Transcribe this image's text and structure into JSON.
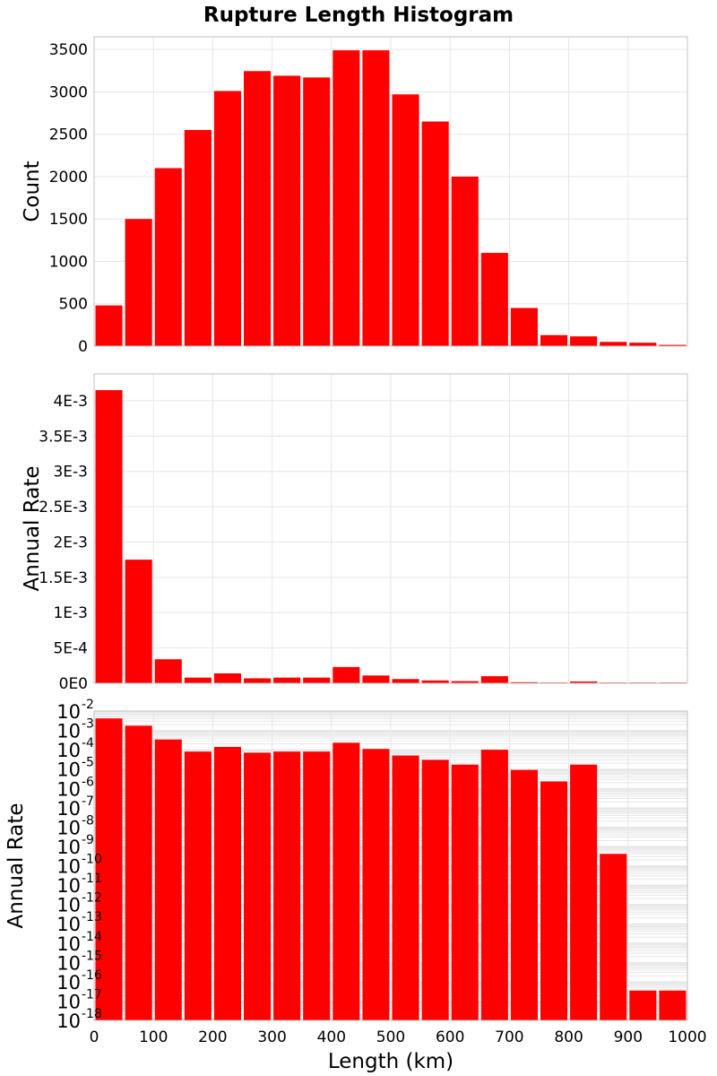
{
  "title": "Rupture Length Histogram",
  "chart_data": [
    {
      "type": "bar",
      "ylabel": "Count",
      "xlim": [
        0,
        1000
      ],
      "ylim": [
        0,
        3650
      ],
      "bin_width": 50,
      "x": [
        25,
        75,
        125,
        175,
        225,
        275,
        325,
        375,
        425,
        475,
        525,
        575,
        625,
        675,
        725,
        775,
        825,
        875,
        925,
        975
      ],
      "values": [
        480,
        1500,
        2100,
        2550,
        3010,
        3245,
        3190,
        3170,
        3490,
        3490,
        2970,
        2650,
        2000,
        1100,
        450,
        130,
        115,
        50,
        40,
        15
      ],
      "yticks": [
        {
          "value": 0,
          "label": "0"
        },
        {
          "value": 500,
          "label": "500"
        },
        {
          "value": 1000,
          "label": "1000"
        },
        {
          "value": 1500,
          "label": "1500"
        },
        {
          "value": 2000,
          "label": "2000"
        },
        {
          "value": 2500,
          "label": "2500"
        },
        {
          "value": 3000,
          "label": "3000"
        },
        {
          "value": 3500,
          "label": "3500"
        }
      ],
      "grid": true,
      "color": "#ff0000"
    },
    {
      "type": "bar",
      "ylabel": "Annual Rate",
      "xlim": [
        0,
        1000
      ],
      "ylim": [
        0,
        0.00438
      ],
      "bin_width": 50,
      "x": [
        25,
        75,
        125,
        175,
        225,
        275,
        325,
        375,
        425,
        475,
        525,
        575,
        625,
        675,
        725,
        775,
        825,
        875,
        925,
        975
      ],
      "values": [
        0.00415,
        0.00175,
        0.00034,
        8e-05,
        0.00014,
        7e-05,
        8e-05,
        8e-05,
        0.00023,
        0.00011,
        6e-05,
        4e-05,
        3e-05,
        0.0001,
        1.5e-05,
        5e-06,
        2.5e-05,
        2e-07,
        2e-08,
        2e-08
      ],
      "yticks": [
        {
          "value": 0,
          "label": "0E0"
        },
        {
          "value": 0.0005,
          "label": "5E-4"
        },
        {
          "value": 0.001,
          "label": "1E-3"
        },
        {
          "value": 0.0015,
          "label": "1.5E-3"
        },
        {
          "value": 0.002,
          "label": "2E-3"
        },
        {
          "value": 0.0025,
          "label": "2.5E-3"
        },
        {
          "value": 0.003,
          "label": "3E-3"
        },
        {
          "value": 0.0035,
          "label": "3.5E-3"
        },
        {
          "value": 0.004,
          "label": "4E-3"
        }
      ],
      "grid": true,
      "color": "#ff0000"
    },
    {
      "type": "bar",
      "ylabel": "Annual Rate",
      "xlabel": "Length (km)",
      "xlim": [
        0,
        1000
      ],
      "ylim_exp": [
        -18,
        -2
      ],
      "log_scale": true,
      "bin_width": 50,
      "x": [
        25,
        75,
        125,
        175,
        225,
        275,
        325,
        375,
        425,
        475,
        525,
        575,
        625,
        675,
        725,
        775,
        825,
        875,
        925,
        975
      ],
      "values": [
        0.00415,
        0.00175,
        0.00034,
        8e-05,
        0.00014,
        7e-05,
        8e-05,
        8e-05,
        0.00023,
        0.00011,
        5e-05,
        3e-05,
        1.7e-05,
        0.0001,
        9e-06,
        2.3e-06,
        1.7e-05,
        4.1e-10,
        3.5e-17,
        3.5e-17
      ],
      "ytick_exponents": [
        "-2",
        "-3",
        "-4",
        "-5",
        "-6",
        "-7",
        "-8",
        "-9",
        "-10",
        "-11",
        "-12",
        "-13",
        "-14",
        "-15",
        "-16",
        "-17",
        "-18"
      ],
      "ytick_base": "10",
      "xticks": [
        {
          "value": 0,
          "label": "0"
        },
        {
          "value": 100,
          "label": "100"
        },
        {
          "value": 200,
          "label": "200"
        },
        {
          "value": 300,
          "label": "300"
        },
        {
          "value": 400,
          "label": "400"
        },
        {
          "value": 500,
          "label": "500"
        },
        {
          "value": 600,
          "label": "600"
        },
        {
          "value": 700,
          "label": "700"
        },
        {
          "value": 800,
          "label": "800"
        },
        {
          "value": 900,
          "label": "900"
        },
        {
          "value": 1000,
          "label": "1000"
        }
      ],
      "grid": true,
      "color": "#ff0000"
    }
  ]
}
